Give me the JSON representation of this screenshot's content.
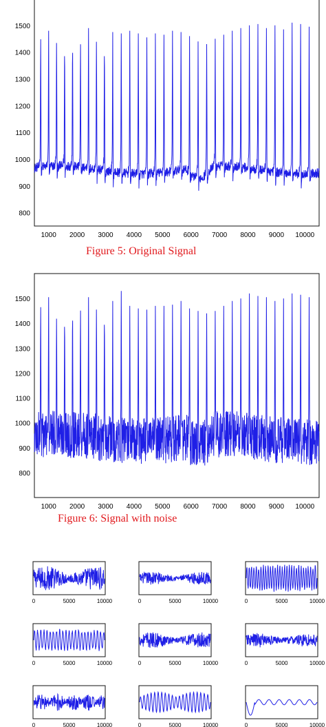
{
  "colors": {
    "signal": "#1f1fe6",
    "caption": "#e1191d",
    "axis": "#111111"
  },
  "chart_data": [
    {
      "type": "line",
      "caption": "Figure 5: Original Signal",
      "xlim": [
        500,
        10500
      ],
      "ylim": [
        750,
        1600
      ],
      "xticks": [
        1000,
        2000,
        3000,
        4000,
        5000,
        6000,
        7000,
        8000,
        9000,
        10000
      ],
      "yticks": [
        800,
        900,
        1000,
        1100,
        1200,
        1300,
        1400,
        1500
      ],
      "baseline": 960,
      "noise_amplitude": 18,
      "peak_x": [
        720,
        1000,
        1280,
        1560,
        1840,
        2120,
        2400,
        2680,
        2960,
        3250,
        3550,
        3850,
        4150,
        4450,
        4750,
        5050,
        5350,
        5650,
        5950,
        6250,
        6550,
        6850,
        7150,
        7450,
        7750,
        8050,
        8350,
        8650,
        8950,
        9250,
        9550,
        9850,
        10150
      ],
      "peak_y": [
        1490,
        1480,
        1475,
        1465,
        1480,
        1470,
        1490,
        1480,
        1465,
        1475,
        1470,
        1480,
        1470,
        1455,
        1470,
        1465,
        1480,
        1475,
        1460,
        1440,
        1430,
        1450,
        1465,
        1480,
        1490,
        1500,
        1505,
        1490,
        1500,
        1485,
        1510,
        1505,
        1495
      ]
    },
    {
      "type": "line",
      "caption": "Figure 6: Signal with noise",
      "xlim": [
        500,
        10500
      ],
      "ylim": [
        700,
        1600
      ],
      "xticks": [
        1000,
        2000,
        3000,
        4000,
        5000,
        6000,
        7000,
        8000,
        9000,
        10000
      ],
      "yticks": [
        800,
        900,
        1000,
        1100,
        1200,
        1300,
        1400,
        1500
      ],
      "baseline": 940,
      "noise_amplitude": 95,
      "peak_x": [
        720,
        1000,
        1280,
        1560,
        1840,
        2120,
        2400,
        2680,
        2960,
        3250,
        3550,
        3850,
        4150,
        4450,
        4750,
        5050,
        5350,
        5650,
        5950,
        6250,
        6550,
        6850,
        7150,
        7450,
        7750,
        8050,
        8350,
        8650,
        8950,
        9250,
        9550,
        9850,
        10150
      ],
      "peak_y": [
        1510,
        1505,
        1460,
        1470,
        1500,
        1495,
        1505,
        1500,
        1480,
        1490,
        1530,
        1470,
        1460,
        1455,
        1470,
        1470,
        1475,
        1490,
        1460,
        1450,
        1440,
        1450,
        1470,
        1490,
        1500,
        1520,
        1510,
        1505,
        1490,
        1500,
        1520,
        1515,
        1505
      ]
    }
  ],
  "subplots": {
    "xticks": [
      "0",
      "5000",
      "10000"
    ],
    "panels": [
      {
        "kind": "dense",
        "amp": 0.85,
        "freq": 120
      },
      {
        "kind": "dense",
        "amp": 0.45,
        "freq": 120
      },
      {
        "kind": "spiky",
        "amp": 0.95,
        "freq": 60
      },
      {
        "kind": "spiky",
        "amp": 0.8,
        "freq": 45
      },
      {
        "kind": "dense",
        "amp": 0.55,
        "freq": 110
      },
      {
        "kind": "dense",
        "amp": 0.5,
        "freq": 110
      },
      {
        "kind": "bursty",
        "amp": 0.6,
        "freq": 90
      },
      {
        "kind": "wavy",
        "amp": 0.7,
        "freq": 40
      },
      {
        "kind": "slow",
        "amp": 0.45,
        "freq": 14
      }
    ]
  }
}
